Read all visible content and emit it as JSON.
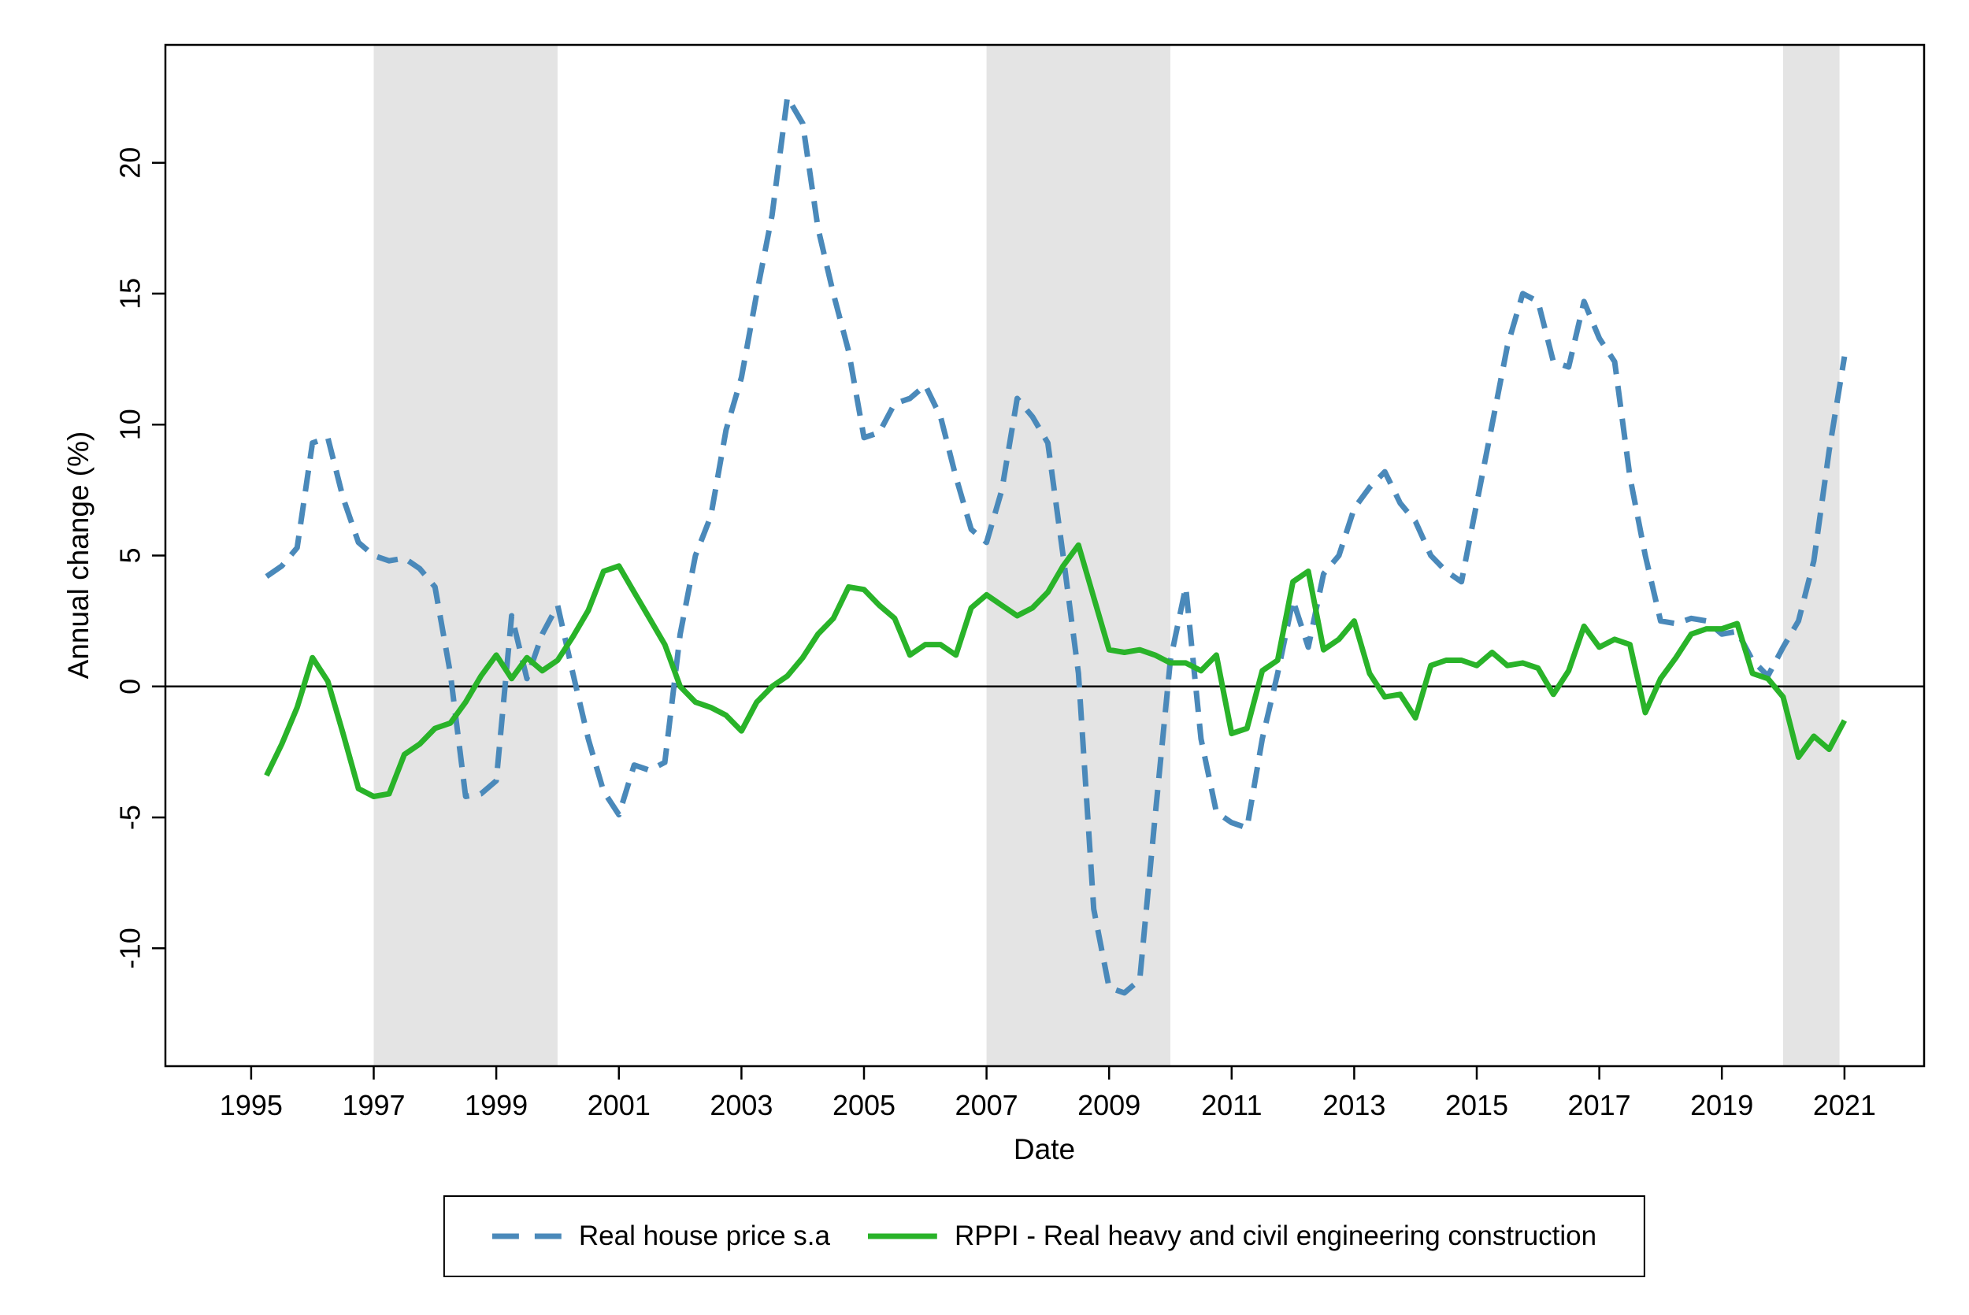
{
  "chart_data": {
    "type": "line",
    "title": "",
    "xlabel": "Date",
    "ylabel": "Annual change (%)",
    "x_ticks": [
      1995,
      1997,
      1999,
      2001,
      2003,
      2005,
      2007,
      2009,
      2011,
      2013,
      2015,
      2017,
      2019,
      2021
    ],
    "y_ticks": [
      -10,
      -5,
      0,
      5,
      10,
      15,
      20
    ],
    "xlim": [
      1993.6,
      2022.3
    ],
    "ylim": [
      -14.5,
      24.5
    ],
    "grid": false,
    "legend_position": "bottom",
    "zero_line": 0,
    "band_color": "#e4e4e4",
    "shaded_bands": [
      [
        1997,
        2000
      ],
      [
        2007,
        2010
      ],
      [
        2020,
        2020.92
      ]
    ],
    "x": [
      1995.25,
      1995.5,
      1995.75,
      1996,
      1996.25,
      1996.5,
      1996.75,
      1997,
      1997.25,
      1997.5,
      1997.75,
      1998,
      1998.25,
      1998.5,
      1998.75,
      1999,
      1999.25,
      1999.5,
      1999.75,
      2000,
      2000.25,
      2000.5,
      2000.75,
      2001,
      2001.25,
      2001.5,
      2001.75,
      2002,
      2002.25,
      2002.5,
      2002.75,
      2003,
      2003.25,
      2003.5,
      2003.75,
      2004,
      2004.25,
      2004.5,
      2004.75,
      2005,
      2005.25,
      2005.5,
      2005.75,
      2006,
      2006.25,
      2006.5,
      2006.75,
      2007,
      2007.25,
      2007.5,
      2007.75,
      2008,
      2008.25,
      2008.5,
      2008.75,
      2009,
      2009.25,
      2009.5,
      2009.75,
      2010,
      2010.25,
      2010.5,
      2010.75,
      2011,
      2011.25,
      2011.5,
      2011.75,
      2012,
      2012.25,
      2012.5,
      2012.75,
      2013,
      2013.25,
      2013.5,
      2013.75,
      2014,
      2014.25,
      2014.5,
      2014.75,
      2015,
      2015.25,
      2015.5,
      2015.75,
      2016,
      2016.25,
      2016.5,
      2016.75,
      2017,
      2017.25,
      2017.5,
      2017.75,
      2018,
      2018.25,
      2018.5,
      2018.75,
      2019,
      2019.25,
      2019.5,
      2019.75,
      2020,
      2020.25,
      2020.5,
      2020.75,
      2021
    ],
    "series": [
      {
        "name": "Real house price s.a",
        "color": "#4a89ba",
        "style": "dashed",
        "values": [
          4.2,
          4.6,
          5.3,
          9.3,
          9.5,
          7.2,
          5.5,
          5.0,
          4.8,
          4.9,
          4.5,
          3.8,
          0.5,
          -4.2,
          -4.1,
          -3.6,
          2.7,
          0.3,
          2.0,
          3.1,
          0.5,
          -2.0,
          -4.0,
          -4.9,
          -3.0,
          -3.2,
          -2.9,
          2.0,
          5.0,
          6.5,
          9.8,
          11.8,
          15.0,
          18.0,
          22.5,
          21.5,
          17.5,
          15.0,
          12.8,
          9.5,
          9.7,
          10.8,
          11.0,
          11.5,
          10.3,
          8.0,
          6.0,
          5.5,
          7.5,
          11.0,
          10.3,
          9.3,
          5.0,
          0.5,
          -8.5,
          -11.5,
          -11.7,
          -11.2,
          -5.0,
          1.0,
          3.8,
          -2.0,
          -4.8,
          -5.2,
          -5.4,
          -2.0,
          0.5,
          3.3,
          1.5,
          4.3,
          5.0,
          6.8,
          7.6,
          8.2,
          7.0,
          6.3,
          5.0,
          4.4,
          4.0,
          7.0,
          10.0,
          13.0,
          15.0,
          14.7,
          12.4,
          12.2,
          14.7,
          13.3,
          12.4,
          8.0,
          5.0,
          2.5,
          2.4,
          2.6,
          2.5,
          2.0,
          2.1,
          1.0,
          0.4,
          1.5,
          2.5,
          4.8,
          9.0,
          12.6
        ]
      },
      {
        "name": "RPPI - Real heavy and civil engineering construction",
        "color": "#29b329",
        "style": "solid",
        "values": [
          -3.4,
          -2.2,
          -0.8,
          1.1,
          0.2,
          -1.8,
          -3.9,
          -4.2,
          -4.1,
          -2.6,
          -2.2,
          -1.6,
          -1.4,
          -0.6,
          0.4,
          1.2,
          0.3,
          1.1,
          0.6,
          1.0,
          1.9,
          2.9,
          4.4,
          4.6,
          3.6,
          2.6,
          1.6,
          0.0,
          -0.6,
          -0.8,
          -1.1,
          -1.7,
          -0.6,
          0.0,
          0.4,
          1.1,
          2.0,
          2.6,
          3.8,
          3.7,
          3.1,
          2.6,
          1.2,
          1.6,
          1.6,
          1.2,
          3.0,
          3.5,
          3.1,
          2.7,
          3.0,
          3.6,
          4.6,
          5.4,
          3.4,
          1.4,
          1.3,
          1.4,
          1.2,
          0.9,
          0.9,
          0.6,
          1.2,
          -1.8,
          -1.6,
          0.6,
          1.0,
          4.0,
          4.4,
          1.4,
          1.8,
          2.5,
          0.5,
          -0.4,
          -0.3,
          -1.2,
          0.8,
          1.0,
          1.0,
          0.8,
          1.3,
          0.8,
          0.9,
          0.7,
          -0.3,
          0.6,
          2.3,
          1.5,
          1.8,
          1.6,
          -1.0,
          0.3,
          1.1,
          2.0,
          2.2,
          2.2,
          2.4,
          0.5,
          0.3,
          -0.4,
          -2.7,
          -1.9,
          -2.4,
          -1.3
        ]
      }
    ]
  }
}
